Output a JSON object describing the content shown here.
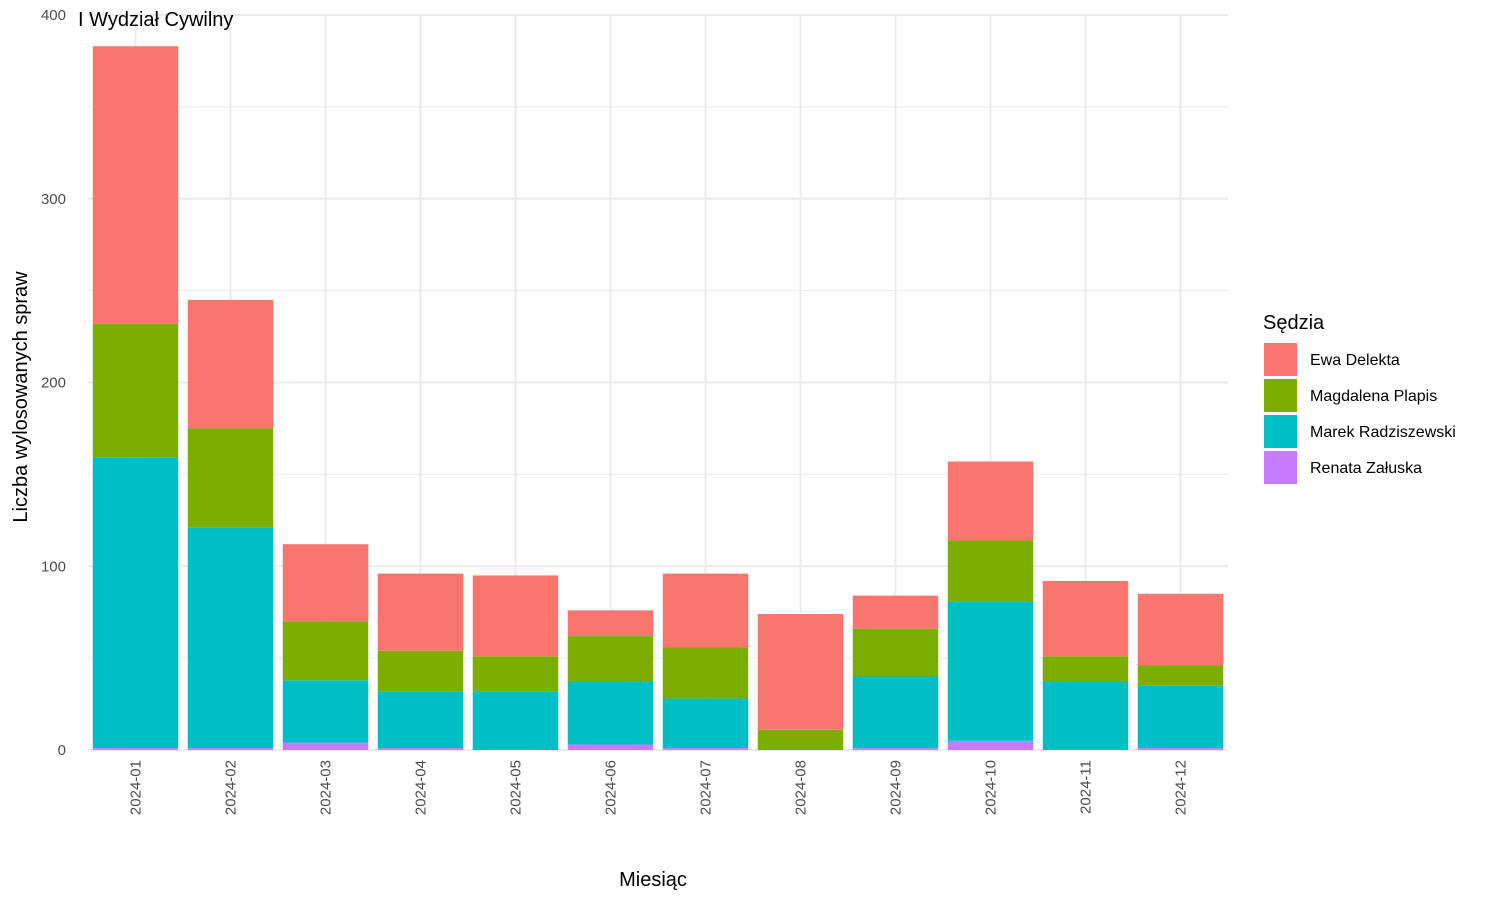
{
  "chart_data": {
    "type": "bar",
    "stacked": true,
    "title": "I Wydział Cywilny",
    "xlabel": "Miesiąc",
    "ylabel": "Liczba wylosowanych spraw",
    "ylim": [
      0,
      400
    ],
    "yticks": [
      0,
      100,
      200,
      300,
      400
    ],
    "grid": true,
    "legend_position": "right",
    "legend_title": "Sędzia",
    "categories": [
      "2024-01",
      "2024-02",
      "2024-03",
      "2024-04",
      "2024-05",
      "2024-06",
      "2024-07",
      "2024-08",
      "2024-09",
      "2024-10",
      "2024-11",
      "2024-12"
    ],
    "series": [
      {
        "name": "Renata Załuska",
        "color": "#C77CFF",
        "values": [
          1,
          1,
          4,
          1,
          0,
          3,
          1,
          0,
          1,
          5,
          0,
          1
        ]
      },
      {
        "name": "Marek Radziszewski",
        "color": "#00BFC4",
        "values": [
          158,
          120,
          34,
          31,
          32,
          34,
          27,
          0,
          39,
          76,
          37,
          34
        ]
      },
      {
        "name": "Magdalena Plapis",
        "color": "#7CAE00",
        "values": [
          73,
          54,
          32,
          22,
          19,
          25,
          28,
          11,
          26,
          33,
          14,
          11
        ]
      },
      {
        "name": "Ewa Delekta",
        "color": "#F8766D",
        "values": [
          151,
          70,
          42,
          42,
          44,
          14,
          40,
          63,
          18,
          43,
          41,
          39
        ]
      }
    ],
    "legend_order": [
      "Ewa Delekta",
      "Magdalena Plapis",
      "Marek Radziszewski",
      "Renata Załuska"
    ]
  }
}
